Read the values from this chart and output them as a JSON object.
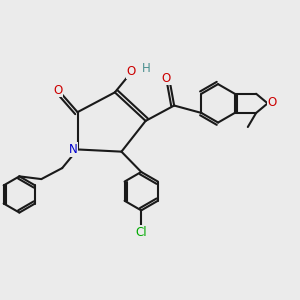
{
  "bg_color": "#ebebeb",
  "bond_color": "#1a1a1a",
  "bond_width": 1.5,
  "atom_colors": {
    "O": "#cc0000",
    "N": "#0000cc",
    "Cl": "#00aa00",
    "H_teal": "#4a9090"
  },
  "font_size_atom": 9,
  "figsize": [
    3.0,
    3.0
  ],
  "dpi": 100
}
